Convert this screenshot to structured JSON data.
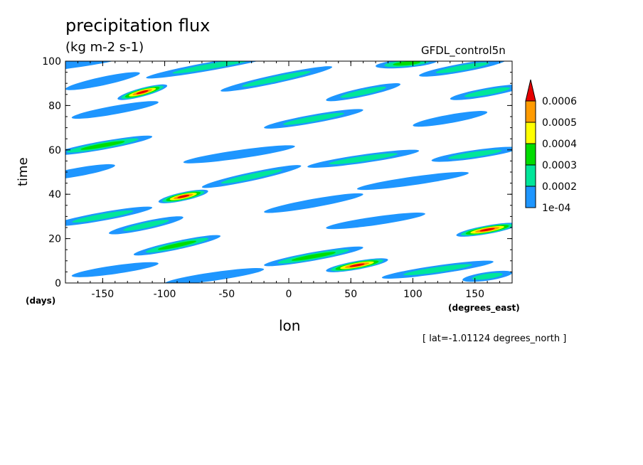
{
  "chart_data": {
    "type": "heatmap",
    "title": "precipitation flux",
    "units": "(kg m-2 s-1)",
    "dataset": "GFDL_control5n",
    "xlabel": "lon",
    "xunit": "(degrees_east)",
    "ylabel": "time",
    "yunit": "(days)",
    "note": "[ lat=-1.01124 degrees_north ]",
    "xlim": [
      -180,
      180
    ],
    "ylim": [
      0,
      100
    ],
    "x_ticks": [
      -150,
      -100,
      -50,
      0,
      50,
      100,
      150
    ],
    "y_ticks": [
      0,
      20,
      40,
      60,
      80,
      100
    ],
    "colorbar": {
      "labels": [
        "1e-04",
        "0.0002",
        "0.0003",
        "0.0004",
        "0.0005",
        "0.0006"
      ],
      "levels": [
        0.0001,
        0.0002,
        0.0003,
        0.0004,
        0.0005,
        0.0006
      ],
      "colors": [
        "#1e96ff",
        "#00e69a",
        "#00dc00",
        "#ffff00",
        "#ff9b00",
        "#e60000"
      ]
    },
    "features": [
      {
        "lon": -172,
        "time": 99,
        "len": 90,
        "slope": -0.08,
        "lvl": 1
      },
      {
        "lon": -60,
        "time": 98,
        "len": 110,
        "slope": -0.1,
        "lvl": 2
      },
      {
        "lon": 95,
        "time": 99,
        "len": 50,
        "slope": -0.05,
        "lvl": 3
      },
      {
        "lon": 140,
        "time": 97,
        "len": 70,
        "slope": -0.1,
        "lvl": 2
      },
      {
        "lon": -150,
        "time": 91,
        "len": 60,
        "slope": -0.12,
        "lvl": 1
      },
      {
        "lon": -118,
        "time": 86,
        "len": 40,
        "slope": -0.15,
        "lvl": 6
      },
      {
        "lon": -10,
        "time": 92,
        "len": 90,
        "slope": -0.12,
        "lvl": 2
      },
      {
        "lon": 60,
        "time": 86,
        "len": 60,
        "slope": -0.12,
        "lvl": 2
      },
      {
        "lon": 160,
        "time": 86,
        "len": 60,
        "slope": -0.1,
        "lvl": 2
      },
      {
        "lon": -140,
        "time": 78,
        "len": 70,
        "slope": -0.1,
        "lvl": 1
      },
      {
        "lon": 20,
        "time": 74,
        "len": 80,
        "slope": -0.1,
        "lvl": 2
      },
      {
        "lon": 130,
        "time": 74,
        "len": 60,
        "slope": -0.1,
        "lvl": 1
      },
      {
        "lon": -150,
        "time": 62,
        "len": 80,
        "slope": -0.1,
        "lvl": 3
      },
      {
        "lon": -40,
        "time": 58,
        "len": 90,
        "slope": -0.08,
        "lvl": 1
      },
      {
        "lon": 60,
        "time": 56,
        "len": 90,
        "slope": -0.08,
        "lvl": 2
      },
      {
        "lon": 150,
        "time": 58,
        "len": 70,
        "slope": -0.08,
        "lvl": 2
      },
      {
        "lon": -170,
        "time": 50,
        "len": 60,
        "slope": -0.1,
        "lvl": 1
      },
      {
        "lon": -30,
        "time": 48,
        "len": 80,
        "slope": -0.12,
        "lvl": 2
      },
      {
        "lon": 100,
        "time": 46,
        "len": 90,
        "slope": -0.08,
        "lvl": 1
      },
      {
        "lon": -85,
        "time": 39,
        "len": 40,
        "slope": -0.12,
        "lvl": 6
      },
      {
        "lon": 20,
        "time": 36,
        "len": 80,
        "slope": -0.1,
        "lvl": 1
      },
      {
        "lon": -150,
        "time": 30,
        "len": 80,
        "slope": -0.1,
        "lvl": 2
      },
      {
        "lon": -115,
        "time": 26,
        "len": 60,
        "slope": -0.12,
        "lvl": 2
      },
      {
        "lon": 70,
        "time": 28,
        "len": 80,
        "slope": -0.08,
        "lvl": 1
      },
      {
        "lon": 160,
        "time": 24,
        "len": 50,
        "slope": -0.1,
        "lvl": 6
      },
      {
        "lon": -90,
        "time": 17,
        "len": 70,
        "slope": -0.12,
        "lvl": 3
      },
      {
        "lon": 20,
        "time": 12,
        "len": 80,
        "slope": -0.1,
        "lvl": 3
      },
      {
        "lon": 55,
        "time": 8,
        "len": 50,
        "slope": -0.1,
        "lvl": 6
      },
      {
        "lon": -140,
        "time": 6,
        "len": 70,
        "slope": -0.08,
        "lvl": 1
      },
      {
        "lon": 120,
        "time": 6,
        "len": 90,
        "slope": -0.08,
        "lvl": 2
      },
      {
        "lon": -60,
        "time": 3,
        "len": 80,
        "slope": -0.08,
        "lvl": 1
      },
      {
        "lon": 160,
        "time": 3,
        "len": 40,
        "slope": -0.08,
        "lvl": 2
      }
    ]
  }
}
